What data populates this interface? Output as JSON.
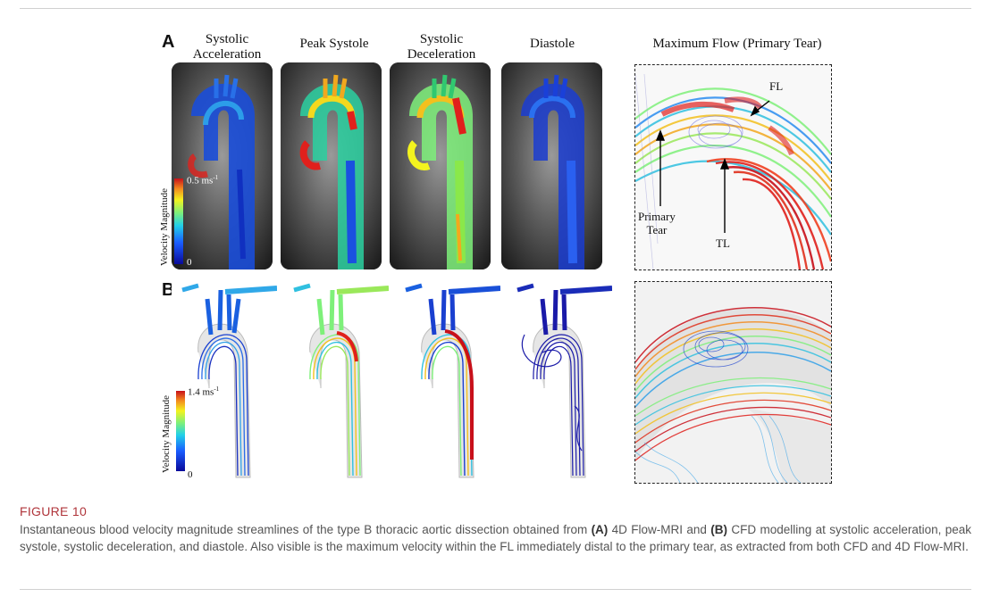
{
  "figure": {
    "panel_a_letter": "A",
    "panel_b_letter": "B",
    "columns": [
      "Systolic Acceleration",
      "Peak Systole",
      "Systolic Deceleration",
      "Diastole",
      "Maximum Flow (Primary Tear)"
    ],
    "col1_line1": "Systolic",
    "col1_line2": "Acceleration",
    "col2": "Peak Systole",
    "col3_line1": "Systolic",
    "col3_line2": "Deceleration",
    "col4": "Diastole",
    "col5": "Maximum Flow (Primary Tear)",
    "colorbar_a": {
      "label": "Velocity Magnitude",
      "max": "0.5 ms",
      "max_sup": "-1",
      "min": "0"
    },
    "colorbar_b": {
      "label": "Velocity Magnitude",
      "max": "1.4 ms",
      "max_sup": "-1",
      "min": "0"
    },
    "annotations": {
      "fl": "FL",
      "primary_tear_line1": "Primary",
      "primary_tear_line2": "Tear",
      "tl": "TL"
    },
    "colors": {
      "jet_low": "#1a2cc8",
      "jet_mid": "#f3f31e",
      "jet_high": "#e0201c"
    }
  },
  "caption": {
    "title": "FIGURE 10",
    "text_1": "Instantaneous blood velocity magnitude streamlines of the type B thoracic aortic dissection obtained from ",
    "bold_a": "(A)",
    "text_2": " 4D Flow-MRI and ",
    "bold_b": "(B)",
    "text_3": " CFD modelling at systolic acceleration, peak systole, systolic deceleration, and diastole. Also visible is the maximum velocity within the FL immediately distal to the primary tear, as extracted from both CFD and 4D Flow-MRI."
  }
}
